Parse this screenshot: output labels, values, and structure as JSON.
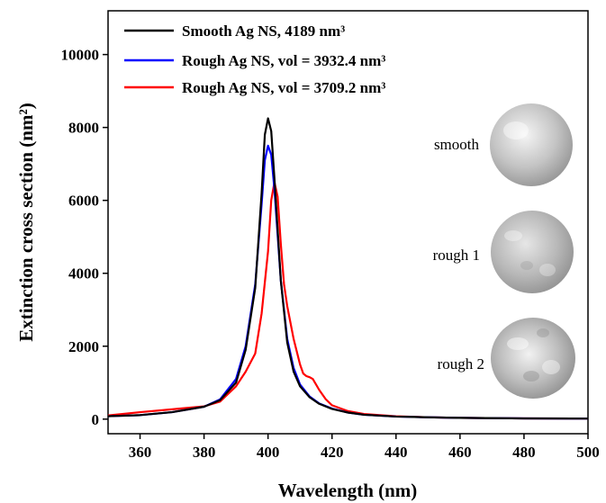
{
  "chart_data": {
    "type": "line",
    "title": "",
    "xlabel": "Wavelength (nm)",
    "ylabel": "Extinction cross section (nm²)",
    "xlim": [
      350,
      500
    ],
    "ylim": [
      -400,
      11200
    ],
    "x_ticks": [
      360,
      380,
      400,
      420,
      440,
      460,
      480,
      500
    ],
    "y_ticks": [
      0,
      2000,
      4000,
      6000,
      8000,
      10000
    ],
    "grid": false,
    "legend_position": "top-left",
    "series": [
      {
        "name": "Smooth Ag NS, 4189 nm³",
        "color": "#000000",
        "x": [
          350,
          360,
          370,
          380,
          385,
          390,
          393,
          396,
          398,
          399,
          400,
          401,
          402,
          404,
          406,
          408,
          410,
          413,
          416,
          420,
          425,
          430,
          440,
          450,
          460,
          480,
          500
        ],
        "y": [
          80,
          110,
          190,
          340,
          520,
          1000,
          1900,
          3600,
          6200,
          7800,
          8250,
          7900,
          6600,
          3800,
          2100,
          1300,
          900,
          600,
          420,
          280,
          180,
          120,
          70,
          50,
          35,
          20,
          15
        ]
      },
      {
        "name": "Rough Ag NS, vol = 3932.4 nm³",
        "color": "#0000ff",
        "x": [
          350,
          360,
          370,
          380,
          385,
          390,
          393,
          396,
          398,
          399,
          400,
          401,
          402,
          404,
          406,
          408,
          410,
          413,
          416,
          420,
          425,
          430,
          440,
          450,
          460,
          480,
          500
        ],
        "y": [
          80,
          110,
          190,
          340,
          540,
          1100,
          2000,
          3700,
          5900,
          7100,
          7500,
          7250,
          6300,
          3800,
          2200,
          1400,
          950,
          620,
          430,
          290,
          180,
          120,
          70,
          50,
          35,
          20,
          15
        ]
      },
      {
        "name": "Rough Ag NS, vol = 3709.2 nm³",
        "color": "#ff0000",
        "x": [
          350,
          360,
          370,
          380,
          385,
          390,
          393,
          396,
          398,
          400,
          401,
          402,
          403,
          404,
          405,
          406,
          408,
          410,
          411,
          412,
          413,
          414,
          416,
          418,
          420,
          425,
          430,
          440,
          450,
          460,
          480,
          500
        ],
        "y": [
          100,
          190,
          270,
          350,
          480,
          900,
          1300,
          1800,
          2900,
          4600,
          6000,
          6500,
          6100,
          4800,
          3700,
          3100,
          2200,
          1500,
          1250,
          1180,
          1150,
          1100,
          800,
          550,
          380,
          220,
          140,
          80,
          50,
          35,
          20,
          15
        ]
      }
    ],
    "insets": [
      {
        "label": "smooth"
      },
      {
        "label": "rough 1"
      },
      {
        "label": "rough 2"
      }
    ]
  }
}
